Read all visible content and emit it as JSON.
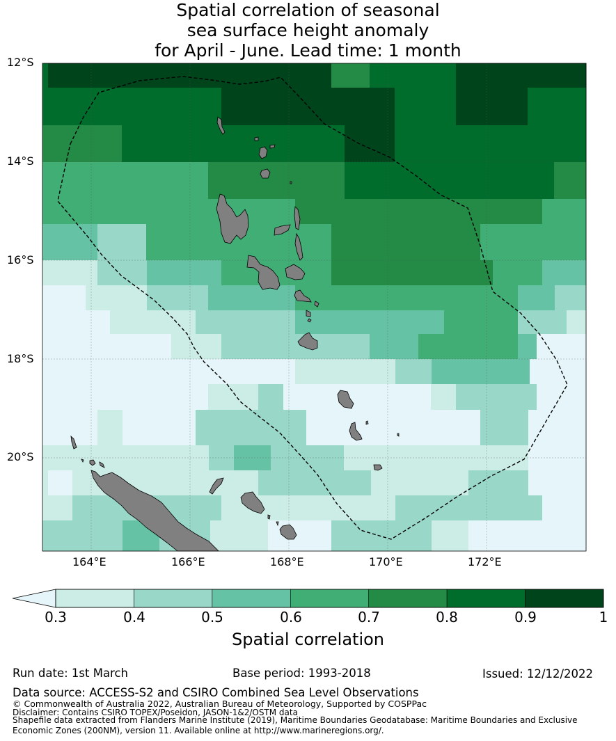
{
  "title_lines": [
    "Spatial correlation of seasonal",
    "sea surface height anomaly",
    "for April - June. Lead time: 1 month"
  ],
  "map": {
    "lat_ticks": [
      "12°S",
      "14°S",
      "16°S",
      "18°S",
      "20°S"
    ],
    "lon_ticks": [
      "164°E",
      "166°E",
      "168°E",
      "170°E",
      "172°E"
    ],
    "colors": {
      "below": "#e5f5f9",
      "bins": [
        "#ccece6",
        "#99d8c9",
        "#66c2a4",
        "#41ae76",
        "#238b45",
        "#006d2c",
        "#00441b"
      ],
      "land": "#808080",
      "eez_line": "#000000"
    }
  },
  "colorbar": {
    "ticks": [
      "0.3",
      "0.4",
      "0.5",
      "0.6",
      "0.7",
      "0.8",
      "0.9",
      "1"
    ],
    "label": "Spatial correlation"
  },
  "footer": {
    "run_date": "Run date: 1st March",
    "base_period": "Base period: 1993-2018",
    "issued": "Issued: 12/12/2022",
    "data_source": "Data source: ACCESS-S2 and CSIRO Combined Sea Level Observations",
    "copyright": "© Commonwealth of Australia 2022, Australian Bureau of Meteorology, Supported by COSPPac",
    "disclaimer": "Disclaimer: Contains CSIRO TOPEX/Poseidon, JASON-1&2/OSTM data",
    "shapefile_1": "Shapefile data extracted from Flanders Marine Institute (2019), Maritime Boundaries Geodatabase: Maritime Boundaries and Exclusive",
    "shapefile_2": "Economic Zones (200NM), version 11. Available online at http://www.marineregions.org/."
  }
}
